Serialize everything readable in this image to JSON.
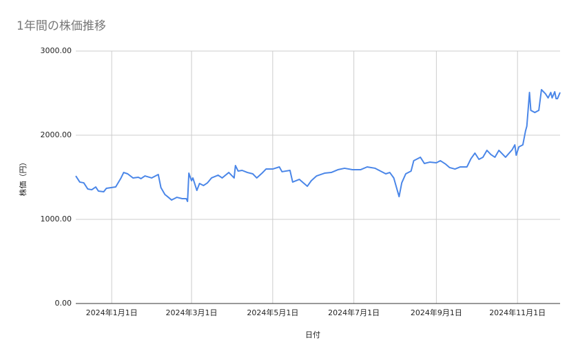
{
  "chart_data": {
    "type": "line",
    "title": "1年間の株価推移",
    "x_label": "日付",
    "y_label": "株価（円）",
    "x": [
      "2023-12-05",
      "2023-12-08",
      "2023-12-11",
      "2023-12-14",
      "2023-12-17",
      "2023-12-20",
      "2023-12-22",
      "2023-12-26",
      "2023-12-28",
      "2024-01-04",
      "2024-01-08",
      "2024-01-10",
      "2024-01-13",
      "2024-01-17",
      "2024-01-21",
      "2024-01-23",
      "2024-01-26",
      "2024-01-31",
      "2024-02-05",
      "2024-02-07",
      "2024-02-10",
      "2024-02-12",
      "2024-02-15",
      "2024-02-19",
      "2024-02-23",
      "2024-02-26",
      "2024-02-27",
      "2024-02-28",
      "2024-03-01",
      "2024-03-02",
      "2024-03-05",
      "2024-03-07",
      "2024-03-10",
      "2024-03-13",
      "2024-03-16",
      "2024-03-21",
      "2024-03-24",
      "2024-03-29",
      "2024-04-02",
      "2024-04-03",
      "2024-04-05",
      "2024-04-08",
      "2024-04-12",
      "2024-04-16",
      "2024-04-19",
      "2024-04-23",
      "2024-04-26",
      "2024-05-01",
      "2024-05-06",
      "2024-05-08",
      "2024-05-14",
      "2024-05-16",
      "2024-05-21",
      "2024-05-27",
      "2024-05-30",
      "2024-06-03",
      "2024-06-09",
      "2024-06-14",
      "2024-06-19",
      "2024-06-24",
      "2024-06-30",
      "2024-07-06",
      "2024-07-11",
      "2024-07-17",
      "2024-07-25",
      "2024-07-28",
      "2024-07-31",
      "2024-08-04",
      "2024-08-06",
      "2024-08-09",
      "2024-08-13",
      "2024-08-15",
      "2024-08-18",
      "2024-08-20",
      "2024-08-23",
      "2024-08-27",
      "2024-09-01",
      "2024-09-04",
      "2024-09-08",
      "2024-09-11",
      "2024-09-15",
      "2024-09-19",
      "2024-09-24",
      "2024-09-27",
      "2024-09-30",
      "2024-10-03",
      "2024-10-06",
      "2024-10-09",
      "2024-10-12",
      "2024-10-15",
      "2024-10-18",
      "2024-10-23",
      "2024-10-28",
      "2024-10-30",
      "2024-10-31",
      "2024-11-02",
      "2024-11-05",
      "2024-11-07",
      "2024-11-08",
      "2024-11-10",
      "2024-11-11",
      "2024-11-14",
      "2024-11-17",
      "2024-11-19",
      "2024-11-22",
      "2024-11-24",
      "2024-11-26",
      "2024-11-27",
      "2024-11-29",
      "2024-11-30",
      "2024-12-01",
      "2024-12-03"
    ],
    "series": [
      {
        "name": "株価（円）",
        "color": "#4a86e8",
        "values": [
          1516,
          1443,
          1434,
          1361,
          1352,
          1385,
          1336,
          1328,
          1369,
          1385,
          1492,
          1557,
          1541,
          1492,
          1500,
          1484,
          1516,
          1492,
          1533,
          1377,
          1295,
          1270,
          1230,
          1262,
          1246,
          1246,
          1213,
          1549,
          1459,
          1492,
          1344,
          1426,
          1402,
          1434,
          1492,
          1525,
          1492,
          1557,
          1492,
          1639,
          1574,
          1582,
          1557,
          1541,
          1492,
          1549,
          1598,
          1598,
          1623,
          1566,
          1582,
          1443,
          1475,
          1393,
          1459,
          1516,
          1549,
          1557,
          1590,
          1607,
          1590,
          1590,
          1623,
          1607,
          1541,
          1557,
          1492,
          1270,
          1434,
          1541,
          1574,
          1697,
          1721,
          1738,
          1664,
          1680,
          1672,
          1697,
          1656,
          1615,
          1598,
          1623,
          1623,
          1721,
          1787,
          1713,
          1738,
          1820,
          1770,
          1738,
          1820,
          1738,
          1828,
          1885,
          1762,
          1861,
          1885,
          2049,
          2107,
          2508,
          2295,
          2270,
          2295,
          2541,
          2492,
          2443,
          2508,
          2443,
          2516,
          2434,
          2434,
          2508
        ]
      }
    ],
    "xlim": [
      "2023-12-05",
      "2024-12-03"
    ],
    "xticks": [
      {
        "value": "2024-01-01",
        "label": "2024年1月1日"
      },
      {
        "value": "2024-03-01",
        "label": "2024年3月1日"
      },
      {
        "value": "2024-05-01",
        "label": "2024年5月1日"
      },
      {
        "value": "2024-07-01",
        "label": "2024年7月1日"
      },
      {
        "value": "2024-09-01",
        "label": "2024年9月1日"
      },
      {
        "value": "2024-11-01",
        "label": "2024年11月1日"
      }
    ],
    "ylim": [
      0,
      3000
    ],
    "yticks": [
      {
        "value": 0,
        "label": "0.00"
      },
      {
        "value": 1000,
        "label": "1000.00"
      },
      {
        "value": 2000,
        "label": "2000.00"
      },
      {
        "value": 3000,
        "label": "3000.00"
      }
    ],
    "grid": true
  }
}
